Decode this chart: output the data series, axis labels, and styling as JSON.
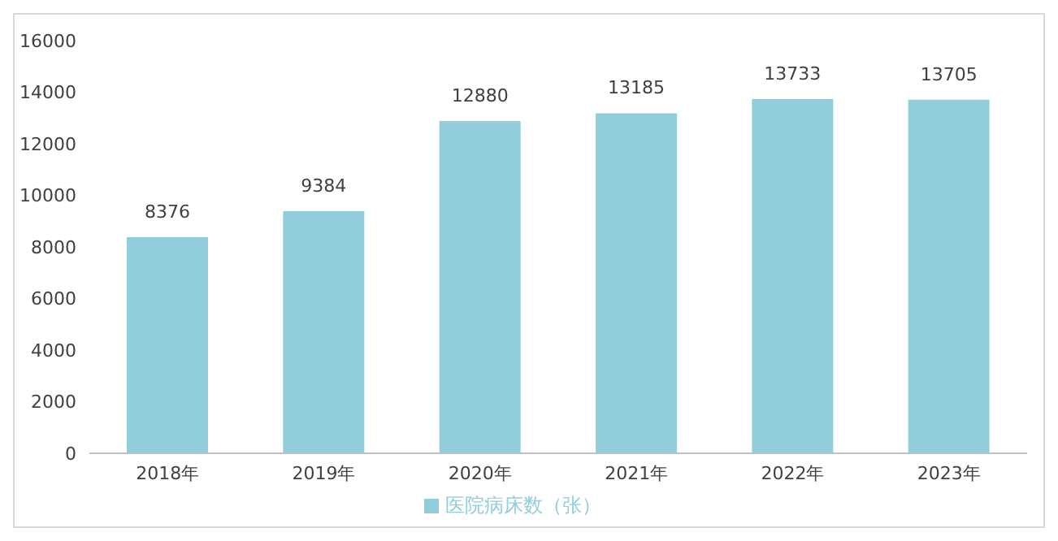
{
  "chart_data": {
    "type": "bar",
    "categories": [
      "2018年",
      "2019年",
      "2020年",
      "2021年",
      "2022年",
      "2023年"
    ],
    "series": [
      {
        "name": "医院病床数（张）",
        "color": "#92cddc",
        "values": [
          8376,
          9384,
          12880,
          13185,
          13733,
          13705
        ]
      }
    ],
    "ylim": [
      0,
      16000
    ],
    "yticks": [
      0,
      2000,
      4000,
      6000,
      8000,
      10000,
      12000,
      14000,
      16000
    ],
    "grid": false,
    "legend": "bottom",
    "data_labels": true
  }
}
